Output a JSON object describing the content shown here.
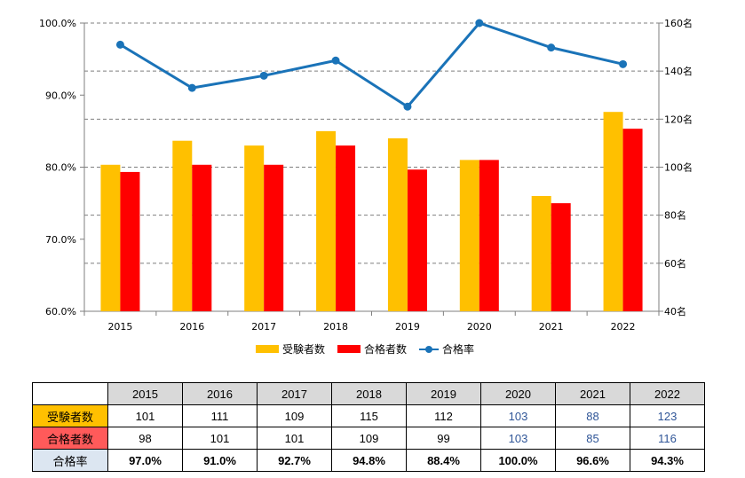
{
  "chart_data": {
    "type": "bar+line",
    "categories": [
      "2015",
      "2016",
      "2017",
      "2018",
      "2019",
      "2020",
      "2021",
      "2022"
    ],
    "series": [
      {
        "name": "受験者数",
        "type": "bar",
        "axis": "right",
        "color": "#ffc000",
        "values": [
          101,
          111,
          109,
          115,
          112,
          103,
          88,
          123
        ]
      },
      {
        "name": "合格者数",
        "type": "bar",
        "axis": "right",
        "color": "#ff0000",
        "values": [
          98,
          101,
          101,
          109,
          99,
          103,
          85,
          116
        ]
      },
      {
        "name": "合格率",
        "type": "line",
        "axis": "left",
        "color": "#1a73b8",
        "values": [
          97.0,
          91.0,
          92.7,
          94.8,
          88.4,
          100.0,
          96.6,
          94.3
        ]
      }
    ],
    "left_axis": {
      "min": 60,
      "max": 100,
      "ticks": [
        "60.0%",
        "70.0%",
        "80.0%",
        "90.0%",
        "100.0%"
      ]
    },
    "right_axis": {
      "min": 40,
      "max": 160,
      "ticks": [
        "40名",
        "60名",
        "80名",
        "100名",
        "120名",
        "140名",
        "160名"
      ]
    },
    "legend": [
      "受験者数",
      "合格者数",
      "合格率"
    ]
  },
  "legend": {
    "applicants": "受験者数",
    "passers": "合格者数",
    "rate": "合格率"
  },
  "table": {
    "years": [
      "2015",
      "2016",
      "2017",
      "2018",
      "2019",
      "2020",
      "2021",
      "2022"
    ],
    "rows": [
      {
        "label": "受験者数",
        "values": [
          "101",
          "111",
          "109",
          "115",
          "112",
          "103",
          "88",
          "123"
        ]
      },
      {
        "label": "合格者数",
        "values": [
          "98",
          "101",
          "101",
          "109",
          "99",
          "103",
          "85",
          "116"
        ]
      },
      {
        "label": "合格率",
        "values": [
          "97.0%",
          "91.0%",
          "92.7%",
          "94.8%",
          "88.4%",
          "100.0%",
          "96.6%",
          "94.3%"
        ]
      }
    ]
  }
}
